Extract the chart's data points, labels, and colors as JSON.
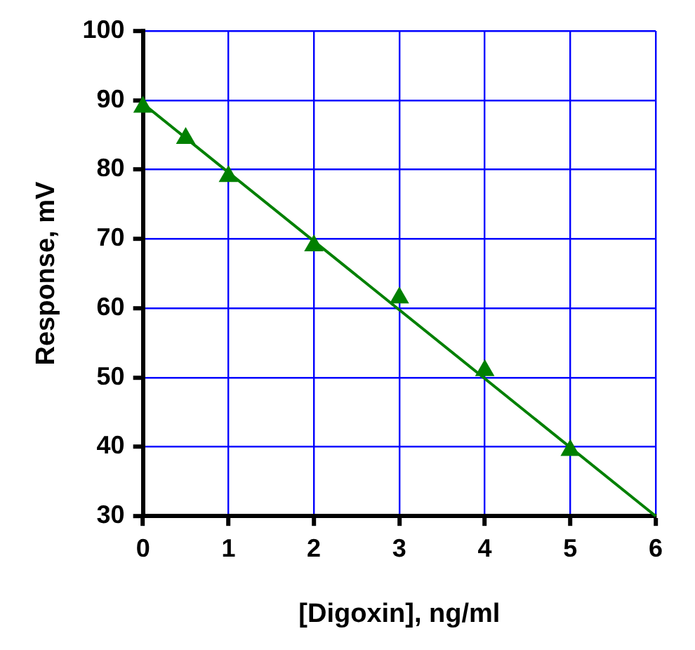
{
  "chart_data": {
    "type": "scatter",
    "xlabel": "[Digoxin], ng/ml",
    "ylabel": "Response, mV",
    "series": [
      {
        "color": "#008000",
        "marker": "triangle",
        "x": [
          0,
          0.5,
          1,
          2,
          3,
          4,
          5
        ],
        "values": [
          89,
          84.5,
          79,
          69,
          61.5,
          51,
          39.5
        ]
      },
      {
        "type": "line",
        "color": "#008000",
        "marker": "none",
        "line_style": "solid",
        "x": [
          0,
          6
        ],
        "values": [
          89.5,
          30
        ]
      }
    ],
    "xlim": [
      0,
      6
    ],
    "xticks": [
      0,
      1,
      2,
      3,
      4,
      5,
      6
    ],
    "ylim": [
      30,
      100
    ],
    "yticks": [
      30,
      40,
      50,
      60,
      70,
      80,
      90,
      100
    ],
    "grid": true,
    "legend": false
  }
}
